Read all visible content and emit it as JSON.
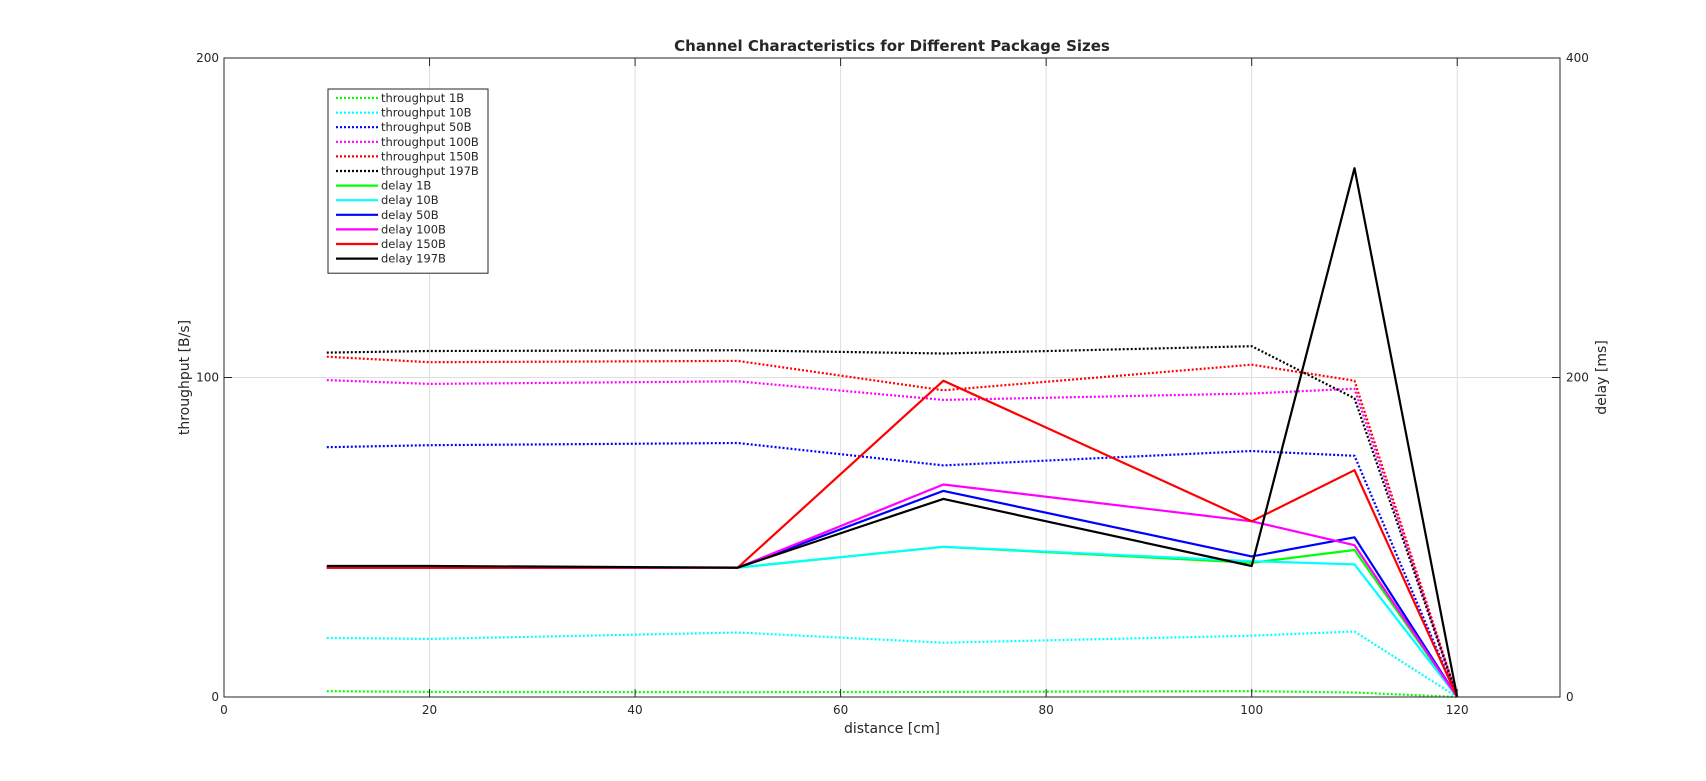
{
  "chart_data": {
    "type": "line",
    "title": "Channel Characteristics for Different Package Sizes",
    "xlabel": "distance [cm]",
    "ylabel_left": "throughput [B/s]",
    "ylabel_right": "delay [ms]",
    "xlim": [
      0,
      130
    ],
    "ylim_left": [
      0,
      200
    ],
    "ylim_right": [
      0,
      400
    ],
    "xticks": [
      0,
      20,
      40,
      60,
      80,
      100,
      120
    ],
    "yticks_left": [
      0,
      100,
      200
    ],
    "yticks_right": [
      0,
      200,
      400
    ],
    "grid": true,
    "legend_placement": "top-left",
    "x": [
      10,
      20,
      50,
      70,
      100,
      110,
      120
    ],
    "series": [
      {
        "name": "throughput 1B",
        "axis": "left",
        "style": "dotted",
        "color": "#00ff00",
        "values": [
          1.8,
          1.6,
          1.5,
          1.6,
          1.8,
          1.4,
          0
        ]
      },
      {
        "name": "throughput 10B",
        "axis": "left",
        "style": "dotted",
        "color": "#00ffff",
        "values": [
          18.5,
          18.2,
          20.2,
          17.0,
          19.2,
          20.5,
          0
        ]
      },
      {
        "name": "throughput 50B",
        "axis": "left",
        "style": "dotted",
        "color": "#0000ff",
        "values": [
          78.2,
          78.8,
          79.5,
          72.5,
          77.0,
          75.5,
          0
        ]
      },
      {
        "name": "throughput 100B",
        "axis": "left",
        "style": "dotted",
        "color": "#ff00ff",
        "values": [
          99.2,
          98.0,
          98.8,
          93.0,
          95.0,
          96.5,
          0
        ]
      },
      {
        "name": "throughput 150B",
        "axis": "left",
        "style": "dotted",
        "color": "#ff0000",
        "values": [
          106.5,
          104.8,
          105.2,
          96.0,
          104.0,
          99.0,
          0
        ]
      },
      {
        "name": "throughput 197B",
        "axis": "left",
        "style": "dotted",
        "color": "#000000",
        "values": [
          107.8,
          108.3,
          108.5,
          107.5,
          109.8,
          93.5,
          0
        ]
      },
      {
        "name": "delay 1B",
        "axis": "right",
        "style": "solid",
        "color": "#00ff00",
        "values": [
          81,
          81,
          81,
          94,
          84,
          92,
          0
        ]
      },
      {
        "name": "delay 10B",
        "axis": "right",
        "style": "solid",
        "color": "#00ffff",
        "values": [
          81,
          81,
          81,
          94,
          85,
          83,
          0
        ]
      },
      {
        "name": "delay 50B",
        "axis": "right",
        "style": "solid",
        "color": "#0000ff",
        "values": [
          81,
          81,
          81,
          129,
          88,
          100,
          0
        ]
      },
      {
        "name": "delay 100B",
        "axis": "right",
        "style": "solid",
        "color": "#ff00ff",
        "values": [
          81,
          81,
          81,
          133,
          110,
          95,
          0
        ]
      },
      {
        "name": "delay 150B",
        "axis": "right",
        "style": "solid",
        "color": "#ff0000",
        "values": [
          81,
          81,
          81,
          198,
          110,
          142,
          0
        ]
      },
      {
        "name": "delay 197B",
        "axis": "right",
        "style": "solid",
        "color": "#000000",
        "values": [
          82,
          82,
          81,
          124,
          82,
          331,
          0
        ]
      }
    ]
  }
}
